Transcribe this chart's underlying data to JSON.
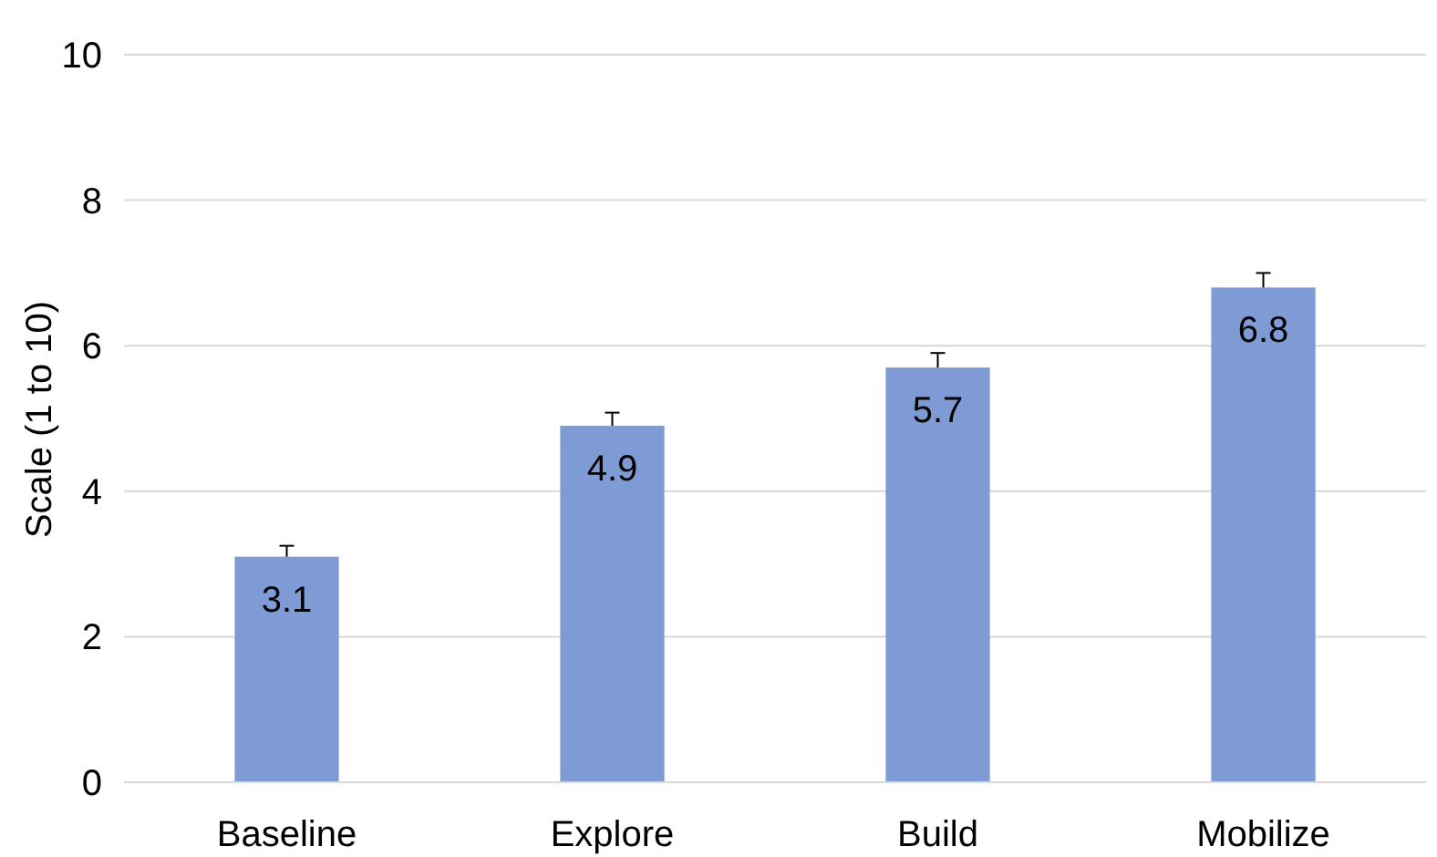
{
  "chart_data": {
    "type": "bar",
    "ylabel": "Scale (1 to 10)",
    "categories": [
      "Baseline",
      "Explore",
      "Build",
      "Mobilize"
    ],
    "values": [
      3.1,
      4.9,
      5.7,
      6.8
    ],
    "color": "#7f9bd6",
    "errors": [
      [
        3.1,
        3.25
      ],
      [
        4.9,
        5.08
      ],
      [
        5.7,
        5.9
      ],
      [
        6.8,
        7.0
      ]
    ],
    "data_labels": true,
    "ylim": [
      0,
      10
    ],
    "yticks": [
      0,
      2,
      4,
      6,
      8,
      10
    ],
    "grid": "y"
  }
}
